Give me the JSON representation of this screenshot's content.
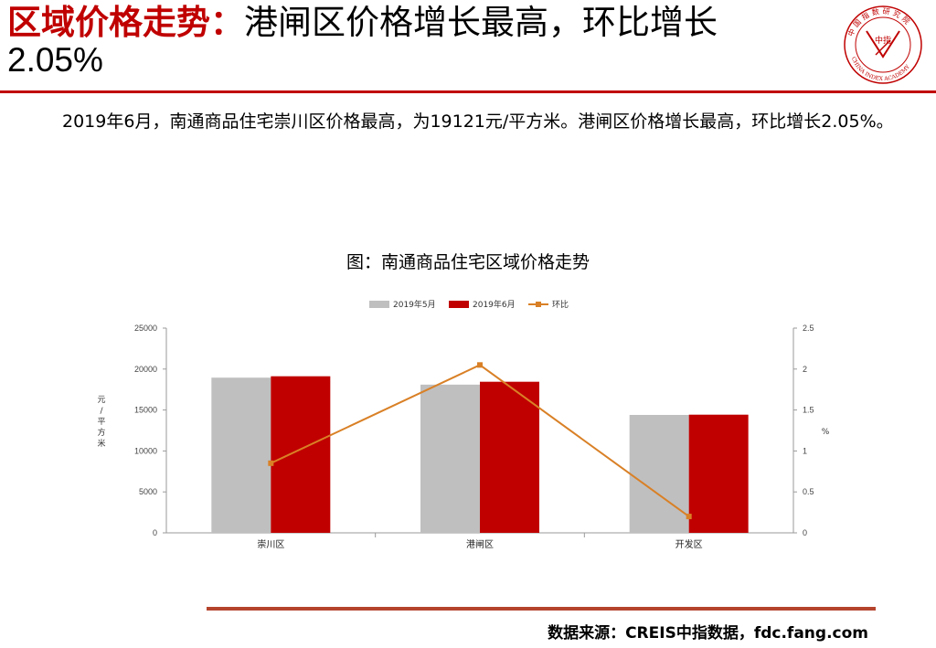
{
  "header": {
    "title_red": "区域价格走势",
    "title_sep": "：",
    "title_rest": "港闸区价格增长最高，环比增长",
    "title_line2": "2.05%"
  },
  "logo": {
    "name": "china-index-academy-logo",
    "text_cn": "中国指数研究院",
    "text_en": "CHINA INDEX ACADEMY",
    "center_text": "中指",
    "color": "#c00000"
  },
  "summary": "2019年6月，南通商品住宅崇川区价格最高，为19121元/平方米。港闸区价格增长最高，环比增长2.05%。",
  "chart_title": "图：南通商品住宅区域价格走势",
  "chart_data": {
    "type": "bar",
    "categories": [
      "崇川区",
      "港闸区",
      "开发区"
    ],
    "series": [
      {
        "name": "2019年5月",
        "kind": "bar",
        "axis": "left",
        "color": "#bfbfbf",
        "values": [
          18950,
          18100,
          14400
        ]
      },
      {
        "name": "2019年6月",
        "kind": "bar",
        "axis": "left",
        "color": "#c00000",
        "values": [
          19121,
          18450,
          14430
        ]
      },
      {
        "name": "环比",
        "kind": "line",
        "axis": "right",
        "color": "#d98026",
        "values": [
          0.85,
          2.05,
          0.2
        ]
      }
    ],
    "y_left": {
      "label": "元/平方米",
      "min": 0,
      "max": 25000,
      "ticks": [
        0,
        5000,
        10000,
        15000,
        20000,
        25000
      ]
    },
    "y_right": {
      "label": "%",
      "min": 0,
      "max": 2.5,
      "ticks": [
        "0",
        "0.5",
        "1",
        "1.5",
        "2",
        "2.5"
      ]
    },
    "legend_position": "top-center",
    "grid": false
  },
  "footer": {
    "source": "数据来源：CREIS中指数据，fdc.fang.com"
  }
}
